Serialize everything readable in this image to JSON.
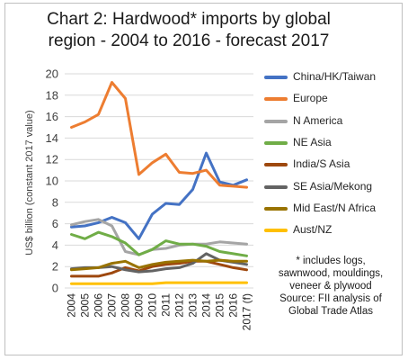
{
  "chart_data": {
    "type": "line",
    "title_lines": [
      "Chart 2: Hardwood* imports by global",
      "region - 2004 to 2016 - forecast 2017"
    ],
    "ylabel": "US$ billion (constant 2017 value)",
    "xlabel": "",
    "categories": [
      "2004",
      "2005",
      "2006",
      "2007",
      "2008",
      "2009",
      "2010",
      "2011",
      "2012",
      "2013",
      "2014",
      "2015",
      "2016",
      "2017 (f)"
    ],
    "ylim": [
      0,
      20
    ],
    "yticks": [
      "0",
      "2",
      "4",
      "6",
      "8",
      "10",
      "12",
      "14",
      "16",
      "18",
      "20"
    ],
    "grid": true,
    "legend_position": "right",
    "series": [
      {
        "name": "China/HK/Taiwan",
        "color": "#4472c4",
        "values": [
          5.7,
          5.8,
          6.1,
          6.6,
          6.1,
          4.6,
          6.9,
          7.9,
          7.8,
          9.2,
          12.6,
          9.9,
          9.6,
          10.1
        ]
      },
      {
        "name": "Europe",
        "color": "#ed7d31",
        "values": [
          15.0,
          15.5,
          16.2,
          19.2,
          17.7,
          10.6,
          11.7,
          12.5,
          10.8,
          10.7,
          11.0,
          9.6,
          9.5,
          9.4
        ]
      },
      {
        "name": "N America",
        "color": "#a5a5a5",
        "values": [
          5.9,
          6.2,
          6.4,
          5.8,
          3.4,
          3.1,
          3.6,
          3.7,
          4.0,
          4.1,
          4.1,
          4.3,
          4.2,
          4.1
        ]
      },
      {
        "name": "NE Asia",
        "color": "#70ad47",
        "values": [
          5.0,
          4.6,
          5.2,
          4.8,
          4.2,
          3.1,
          3.6,
          4.4,
          4.1,
          4.1,
          3.9,
          3.4,
          3.2,
          3.0
        ]
      },
      {
        "name": "India/S Asia",
        "color": "#9e480e",
        "values": [
          1.1,
          1.1,
          1.1,
          1.4,
          1.9,
          1.6,
          2.0,
          2.2,
          2.3,
          2.5,
          2.5,
          2.2,
          1.9,
          1.7
        ]
      },
      {
        "name": "SE Asia/Mekong",
        "color": "#636363",
        "values": [
          1.8,
          1.9,
          1.9,
          2.0,
          1.7,
          1.5,
          1.6,
          1.8,
          1.9,
          2.3,
          3.2,
          2.6,
          2.4,
          2.2
        ]
      },
      {
        "name": "Mid East/N Africa",
        "color": "#997300",
        "values": [
          1.7,
          1.8,
          1.9,
          2.3,
          2.5,
          1.9,
          2.2,
          2.4,
          2.5,
          2.6,
          2.5,
          2.6,
          2.5,
          2.5
        ]
      },
      {
        "name": "Aust/NZ",
        "color": "#ffc000",
        "values": [
          0.4,
          0.4,
          0.4,
          0.4,
          0.4,
          0.4,
          0.4,
          0.5,
          0.5,
          0.5,
          0.5,
          0.5,
          0.5,
          0.5
        ]
      }
    ],
    "note_lines": [
      "* includes logs,",
      "sawnwood, mouldings,",
      "veneer & plywood",
      "Source: FII analysis of",
      "Global Trade Atlas"
    ]
  }
}
